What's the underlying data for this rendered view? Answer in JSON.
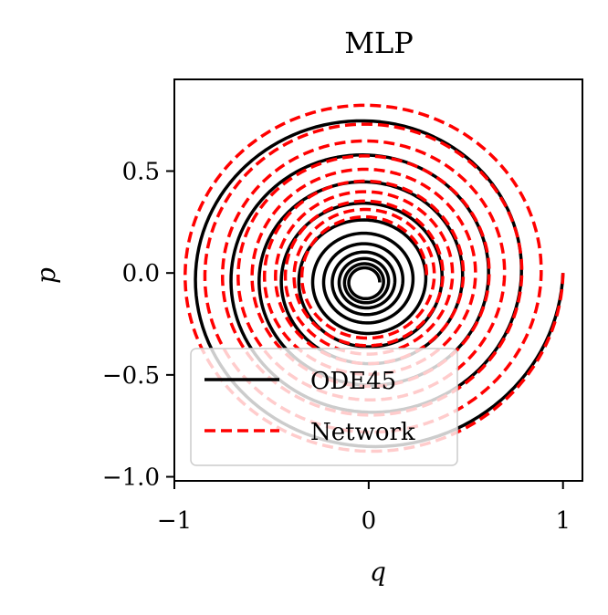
{
  "chart_data": {
    "type": "line",
    "title": "MLP",
    "xlabel": "q",
    "ylabel": "p",
    "xlim": [
      -1.0,
      1.1
    ],
    "ylim": [
      -1.02,
      0.95
    ],
    "xticks": [
      {
        "value": -1,
        "label": "−1"
      },
      {
        "value": 0,
        "label": "0"
      },
      {
        "value": 1,
        "label": "1"
      }
    ],
    "yticks": [
      {
        "value": 0.5,
        "label": "0.5"
      },
      {
        "value": 0.0,
        "label": "0.0"
      },
      {
        "value": -0.5,
        "label": "−0.5"
      },
      {
        "value": -1.0,
        "label": "−1.0"
      }
    ],
    "legend_position": "lower-left",
    "series": [
      {
        "name": "ODE45",
        "color": "#000000",
        "style": "solid",
        "start": [
          1.0,
          0.0
        ],
        "initial_radius": 1.0,
        "radius_decay_per_turn": 0.79,
        "turns": 11,
        "ellipse_ratio_p_to_q": 0.9,
        "center_offset": [
          -0.02,
          -0.05
        ]
      },
      {
        "name": "Network",
        "color": "#ff0000",
        "style": "dashed",
        "start": [
          1.0,
          0.0
        ],
        "initial_radius": 1.0,
        "radius_decay_per_turn": 0.89,
        "turns": 10,
        "ellipse_ratio_p_to_q": 0.9,
        "center_offset": [
          -0.02,
          -0.02
        ]
      }
    ]
  }
}
